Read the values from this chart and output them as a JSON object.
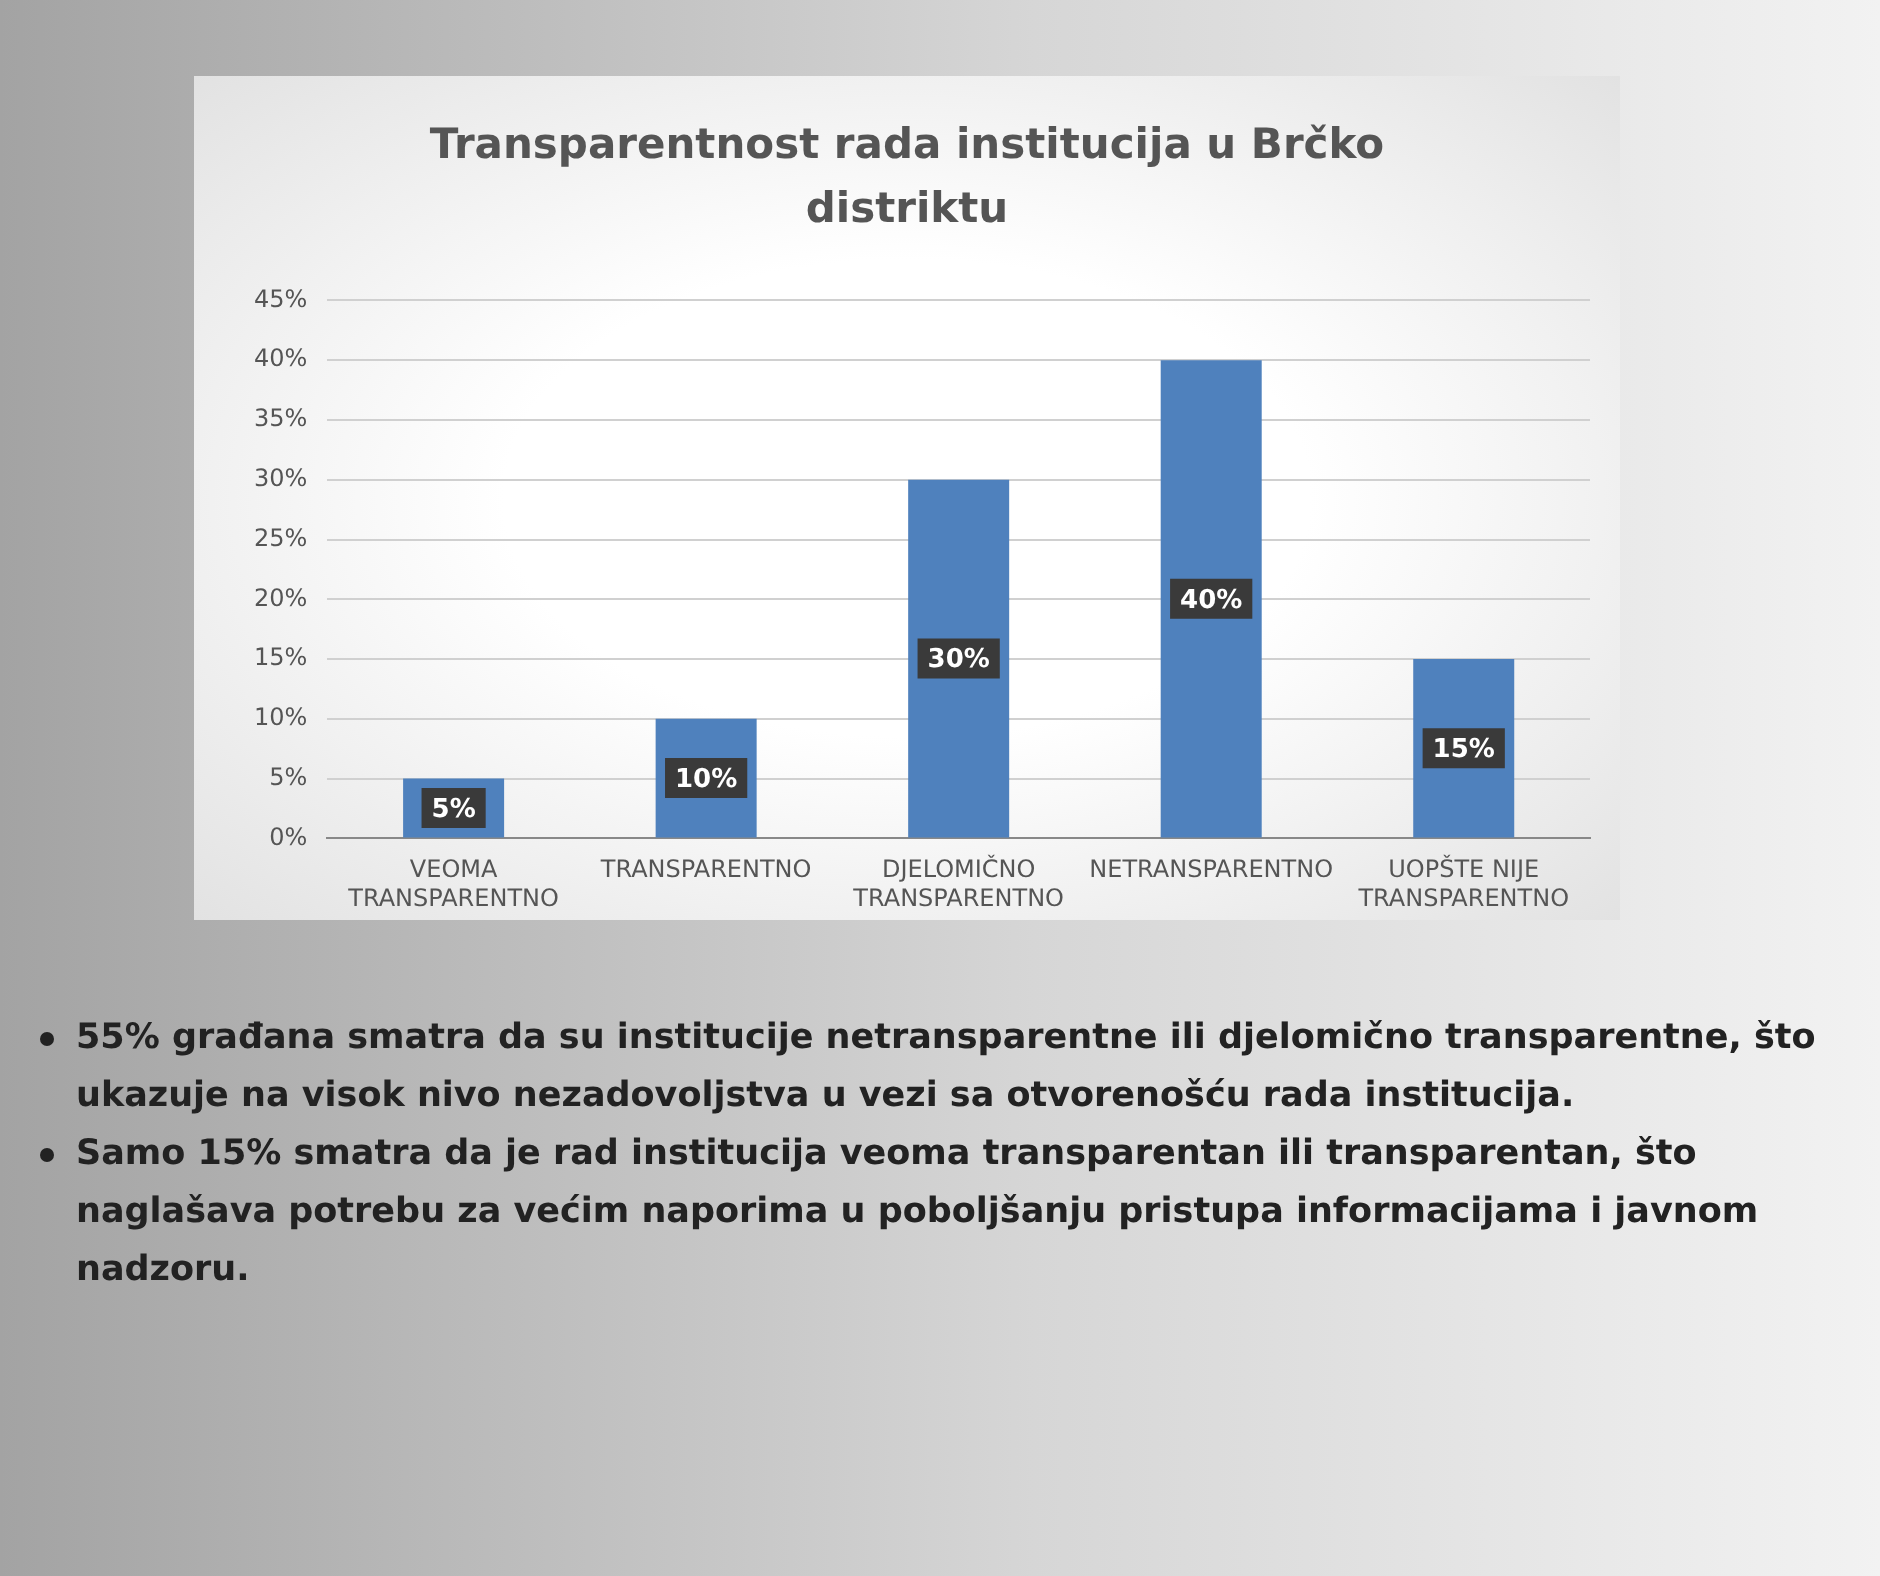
{
  "chart_data": {
    "type": "bar",
    "title": "Transparentnost rada institucija u Brčko distriktu",
    "categories": [
      "VEOMA TRANSPARENTNO",
      "TRANSPARENTNO",
      "DJELOMIČNO TRANSPARENTNO",
      "NETRANSPARENTNO",
      "UOPŠTE NIJE TRANSPARENTNO"
    ],
    "values": [
      5,
      10,
      30,
      40,
      15
    ],
    "value_labels": [
      "5%",
      "10%",
      "30%",
      "40%",
      "15%"
    ],
    "color": "#4f81bd",
    "ylim": [
      0,
      45
    ],
    "yticks": [
      {
        "value": 0,
        "label": "0%"
      },
      {
        "value": 5,
        "label": "5%"
      },
      {
        "value": 10,
        "label": "10%"
      },
      {
        "value": 15,
        "label": "15%"
      },
      {
        "value": 20,
        "label": "20%"
      },
      {
        "value": 25,
        "label": "25%"
      },
      {
        "value": 30,
        "label": "30%"
      },
      {
        "value": 35,
        "label": "35%"
      },
      {
        "value": 40,
        "label": "40%"
      },
      {
        "value": 45,
        "label": "45%"
      }
    ],
    "grid": "y",
    "annotations": [
      "55% građana smatra da su institucije netransparentne ili djelomično transparentne, što ukazuje na visok nivo nezadovoljstva u vezi sa otvorenošću rada institucija.",
      "Samo 15% smatra da je rad institucija veoma transparentan ili transparentan, što naglašava potrebu za većim naporima u poboljšanju pristupa informacijama i javnom nadzoru."
    ]
  }
}
